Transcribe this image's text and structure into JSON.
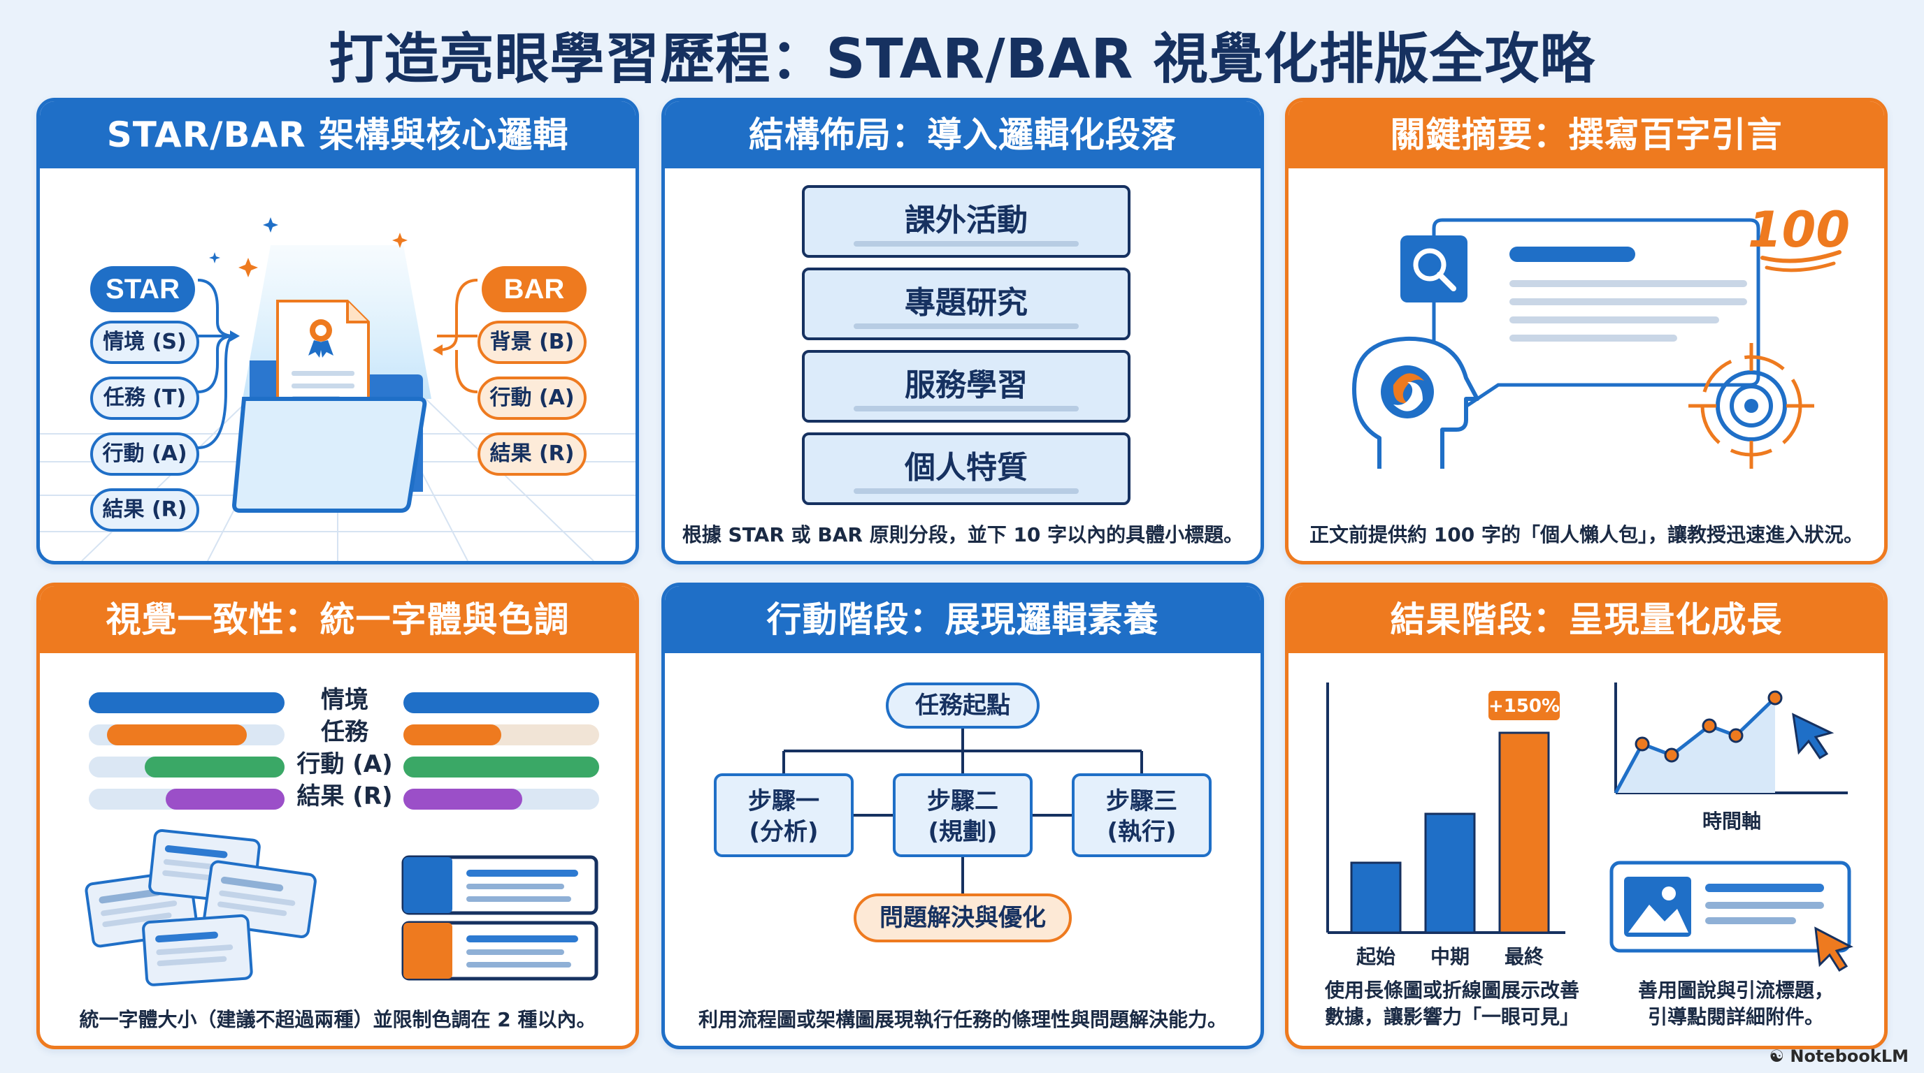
{
  "title": "打造亮眼學習歷程：STAR/BAR 視覺化排版全攻略",
  "panels": {
    "p1": {
      "header": "STAR/BAR 架構與核心邏輯",
      "star_label": "STAR",
      "bar_label": "BAR",
      "star_items": [
        "情境 (S)",
        "任務 (T)",
        "行動 (A)",
        "結果 (R)"
      ],
      "bar_items": [
        "背景 (B)",
        "行動 (A)",
        "結果 (R)"
      ]
    },
    "p2": {
      "header": "結構佈局：導入邏輯化段落",
      "sections": [
        "課外活動",
        "專題研究",
        "服務學習",
        "個人特質"
      ],
      "caption": "根據 STAR 或 BAR 原則分段，並下 10 字以內的具體小標題。"
    },
    "p3": {
      "header": "關鍵摘要：撰寫百字引言",
      "badge": "100",
      "caption": "正文前提供約 100 字的「個人懶人包」，讓教授迅速進入狀況。"
    },
    "p4": {
      "header": "視覺一致性：統一字體與色調",
      "labels": [
        "情境",
        "任務",
        "行動 (A)",
        "結果 (R)"
      ],
      "caption": "統一字體大小（建議不超過兩種）並限制色調在 2 種以內。"
    },
    "p5": {
      "header": "行動階段：展現邏輯素養",
      "start": "任務起點",
      "steps": [
        {
          "line1": "步驟一",
          "line2": "(分析)"
        },
        {
          "line1": "步驟二",
          "line2": "(規劃)"
        },
        {
          "line1": "步驟三",
          "line2": "(執行)"
        }
      ],
      "end": "問題解決與優化",
      "caption": "利用流程圖或架構圖展現執行任務的條理性與問題解決能力。"
    },
    "p6": {
      "header": "結果階段：呈現量化成長",
      "bar_badge": "+150%",
      "bar_labels": [
        "起始",
        "中期",
        "最終"
      ],
      "line_axis_label": "時間軸",
      "caption_left_1": "使用長條圖或折線圖展示改善",
      "caption_left_2": "數據，讓影響力「一眼可見」",
      "caption_right_1": "善用圖說與引流標題，",
      "caption_right_2": "引導點閱詳細附件。"
    }
  },
  "watermark": "NotebookLM",
  "colors": {
    "blue": "#1f6fc7",
    "orange": "#ee7a1f",
    "green": "#3aa866",
    "purple": "#9b4fc8",
    "navy": "#163160"
  }
}
